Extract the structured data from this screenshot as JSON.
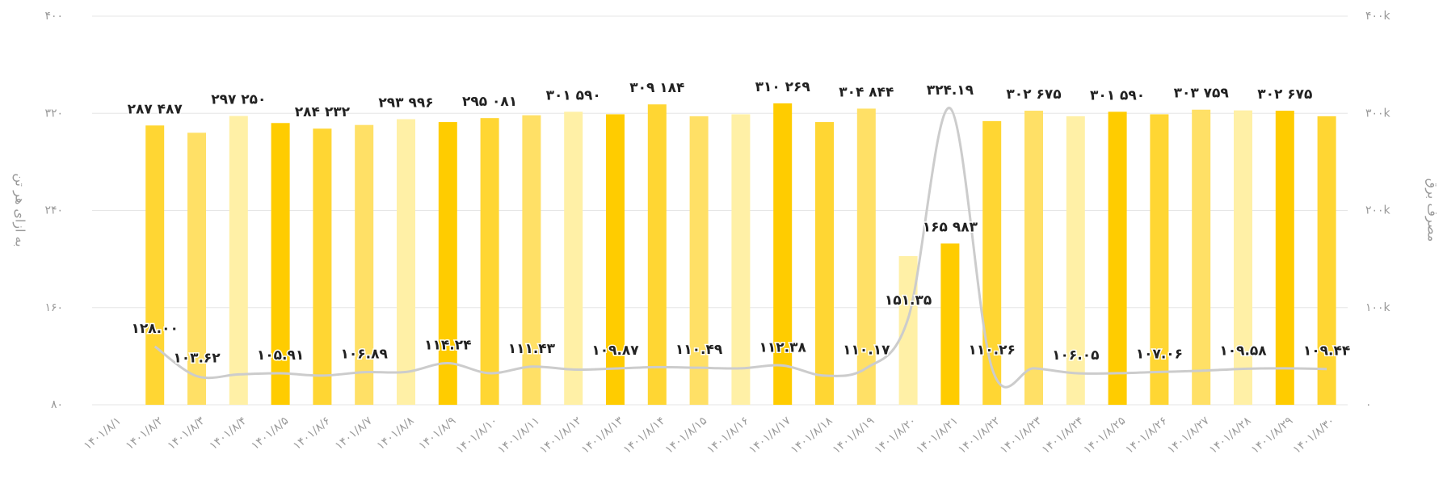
{
  "chart_data": {
    "type": "bar-line",
    "y_label": "به ازای هر تن",
    "y2_label": "مصرف برق",
    "categories": [
      "۱۴۰۱/۸/۱",
      "۱۴۰۱/۸/۲",
      "۱۴۰۱/۸/۳",
      "۱۴۰۱/۸/۴",
      "۱۴۰۱/۸/۵",
      "۱۴۰۱/۸/۶",
      "۱۴۰۱/۸/۷",
      "۱۴۰۱/۸/۸",
      "۱۴۰۱/۸/۹",
      "۱۴۰۱/۸/۱۰",
      "۱۴۰۱/۸/۱۱",
      "۱۴۰۱/۸/۱۲",
      "۱۴۰۱/۸/۱۳",
      "۱۴۰۱/۸/۱۴",
      "۱۴۰۱/۸/۱۵",
      "۱۴۰۱/۸/۱۶",
      "۱۴۰۱/۸/۱۷",
      "۱۴۰۱/۸/۱۸",
      "۱۴۰۱/۸/۱۹",
      "۱۴۰۱/۸/۲۰",
      "۱۴۰۱/۸/۲۱",
      "۱۴۰۱/۸/۲۲",
      "۱۴۰۱/۸/۲۳",
      "۱۴۰۱/۸/۲۴",
      "۱۴۰۱/۸/۲۵",
      "۱۴۰۱/۸/۲۶",
      "۱۴۰۱/۸/۲۷",
      "۱۴۰۱/۸/۲۸",
      "۱۴۰۱/۸/۲۹",
      "۱۴۰۱/۸/۳۰"
    ],
    "series": [
      {
        "type": "bar",
        "axis": "y2",
        "colors": [
          "#ffcc00",
          "#ffd633",
          "#ffe066",
          "#fff0a6",
          "#ffcc00",
          "#ffd633",
          "#ffe066",
          "#fff0a6",
          "#ffcc00",
          "#ffd633",
          "#ffe066",
          "#fff0a6",
          "#ffcc00",
          "#ffd633",
          "#ffe066",
          "#fff0a6",
          "#ffcc00",
          "#ffd633",
          "#ffe066",
          "#fff0a6",
          "#ffcc00",
          "#ffd633",
          "#ffe066",
          "#fff0a6",
          "#ffcc00",
          "#ffd633",
          "#ffe066",
          "#fff0a6",
          "#ffcc00",
          "#ffd633"
        ],
        "values": [
          null,
          287487,
          280000,
          297250,
          290000,
          284232,
          288000,
          293996,
          291000,
          295081,
          298000,
          301590,
          299000,
          309184,
          297000,
          299000,
          310269,
          291000,
          304844,
          153000,
          165983,
          292000,
          302675,
          297000,
          301590,
          299000,
          303759,
          303000,
          302675,
          297000
        ],
        "value_labels": [
          null,
          "۲۸۷ ۴۸۷",
          null,
          "۲۹۷ ۲۵۰",
          null,
          "۲۸۴ ۲۳۲",
          null,
          "۲۹۳ ۹۹۶",
          null,
          "۲۹۵ ۰۸۱",
          null,
          "۳۰۱ ۵۹۰",
          null,
          "۳۰۹ ۱۸۴",
          null,
          null,
          "۳۱۰ ۲۶۹",
          null,
          "۳۰۴ ۸۴۴",
          null,
          "۱۶۵ ۹۸۳",
          null,
          "۳۰۲ ۶۷۵",
          null,
          "۳۰۱ ۵۹۰",
          null,
          "۳۰۳ ۷۵۹",
          null,
          "۳۰۲ ۶۷۵",
          null
        ]
      },
      {
        "type": "line",
        "axis": "y",
        "color": "#cccccc",
        "values": [
          null,
          128.0,
          103.62,
          105,
          105.91,
          104,
          106.89,
          107,
          114.24,
          106,
          111.43,
          109,
          109.87,
          111,
          110.49,
          110,
          112.38,
          104,
          110.17,
          151.35,
          324.19,
          110.26,
          110,
          106.05,
          106,
          107.06,
          108,
          109.58,
          110,
          109.44
        ],
        "value_labels": [
          null,
          "۱۲۸.۰۰",
          "۱۰۳.۶۲",
          null,
          "۱۰۵.۹۱",
          null,
          "۱۰۶.۸۹",
          null,
          "۱۱۴.۲۴",
          null,
          "۱۱۱.۴۳",
          null,
          "۱۰۹.۸۷",
          null,
          "۱۱۰.۴۹",
          null,
          "۱۱۲.۳۸",
          null,
          "۱۱۰.۱۷",
          "۱۵۱.۳۵",
          "۳۲۴.۱۹",
          "۱۱۰.۲۶",
          null,
          "۱۰۶.۰۵",
          null,
          "۱۰۷.۰۶",
          null,
          "۱۰۹.۵۸",
          null,
          "۱۰۹.۴۴"
        ]
      }
    ],
    "ylim": [
      80,
      400
    ],
    "yticks": [
      {
        "value": 80,
        "label": "۸۰"
      },
      {
        "value": 160,
        "label": "۱۶۰"
      },
      {
        "value": 240,
        "label": "۲۴۰"
      },
      {
        "value": 320,
        "label": "۳۲۰"
      },
      {
        "value": 400,
        "label": "۴۰۰"
      }
    ],
    "y2lim": [
      0,
      400000
    ],
    "y2ticks": [
      {
        "value": 0,
        "label": "۰"
      },
      {
        "value": 100000,
        "label": "۱۰۰k"
      },
      {
        "value": 200000,
        "label": "۲۰۰k"
      },
      {
        "value": 300000,
        "label": "۳۰۰k"
      },
      {
        "value": 400000,
        "label": "۴۰۰k"
      }
    ],
    "grid": true
  }
}
